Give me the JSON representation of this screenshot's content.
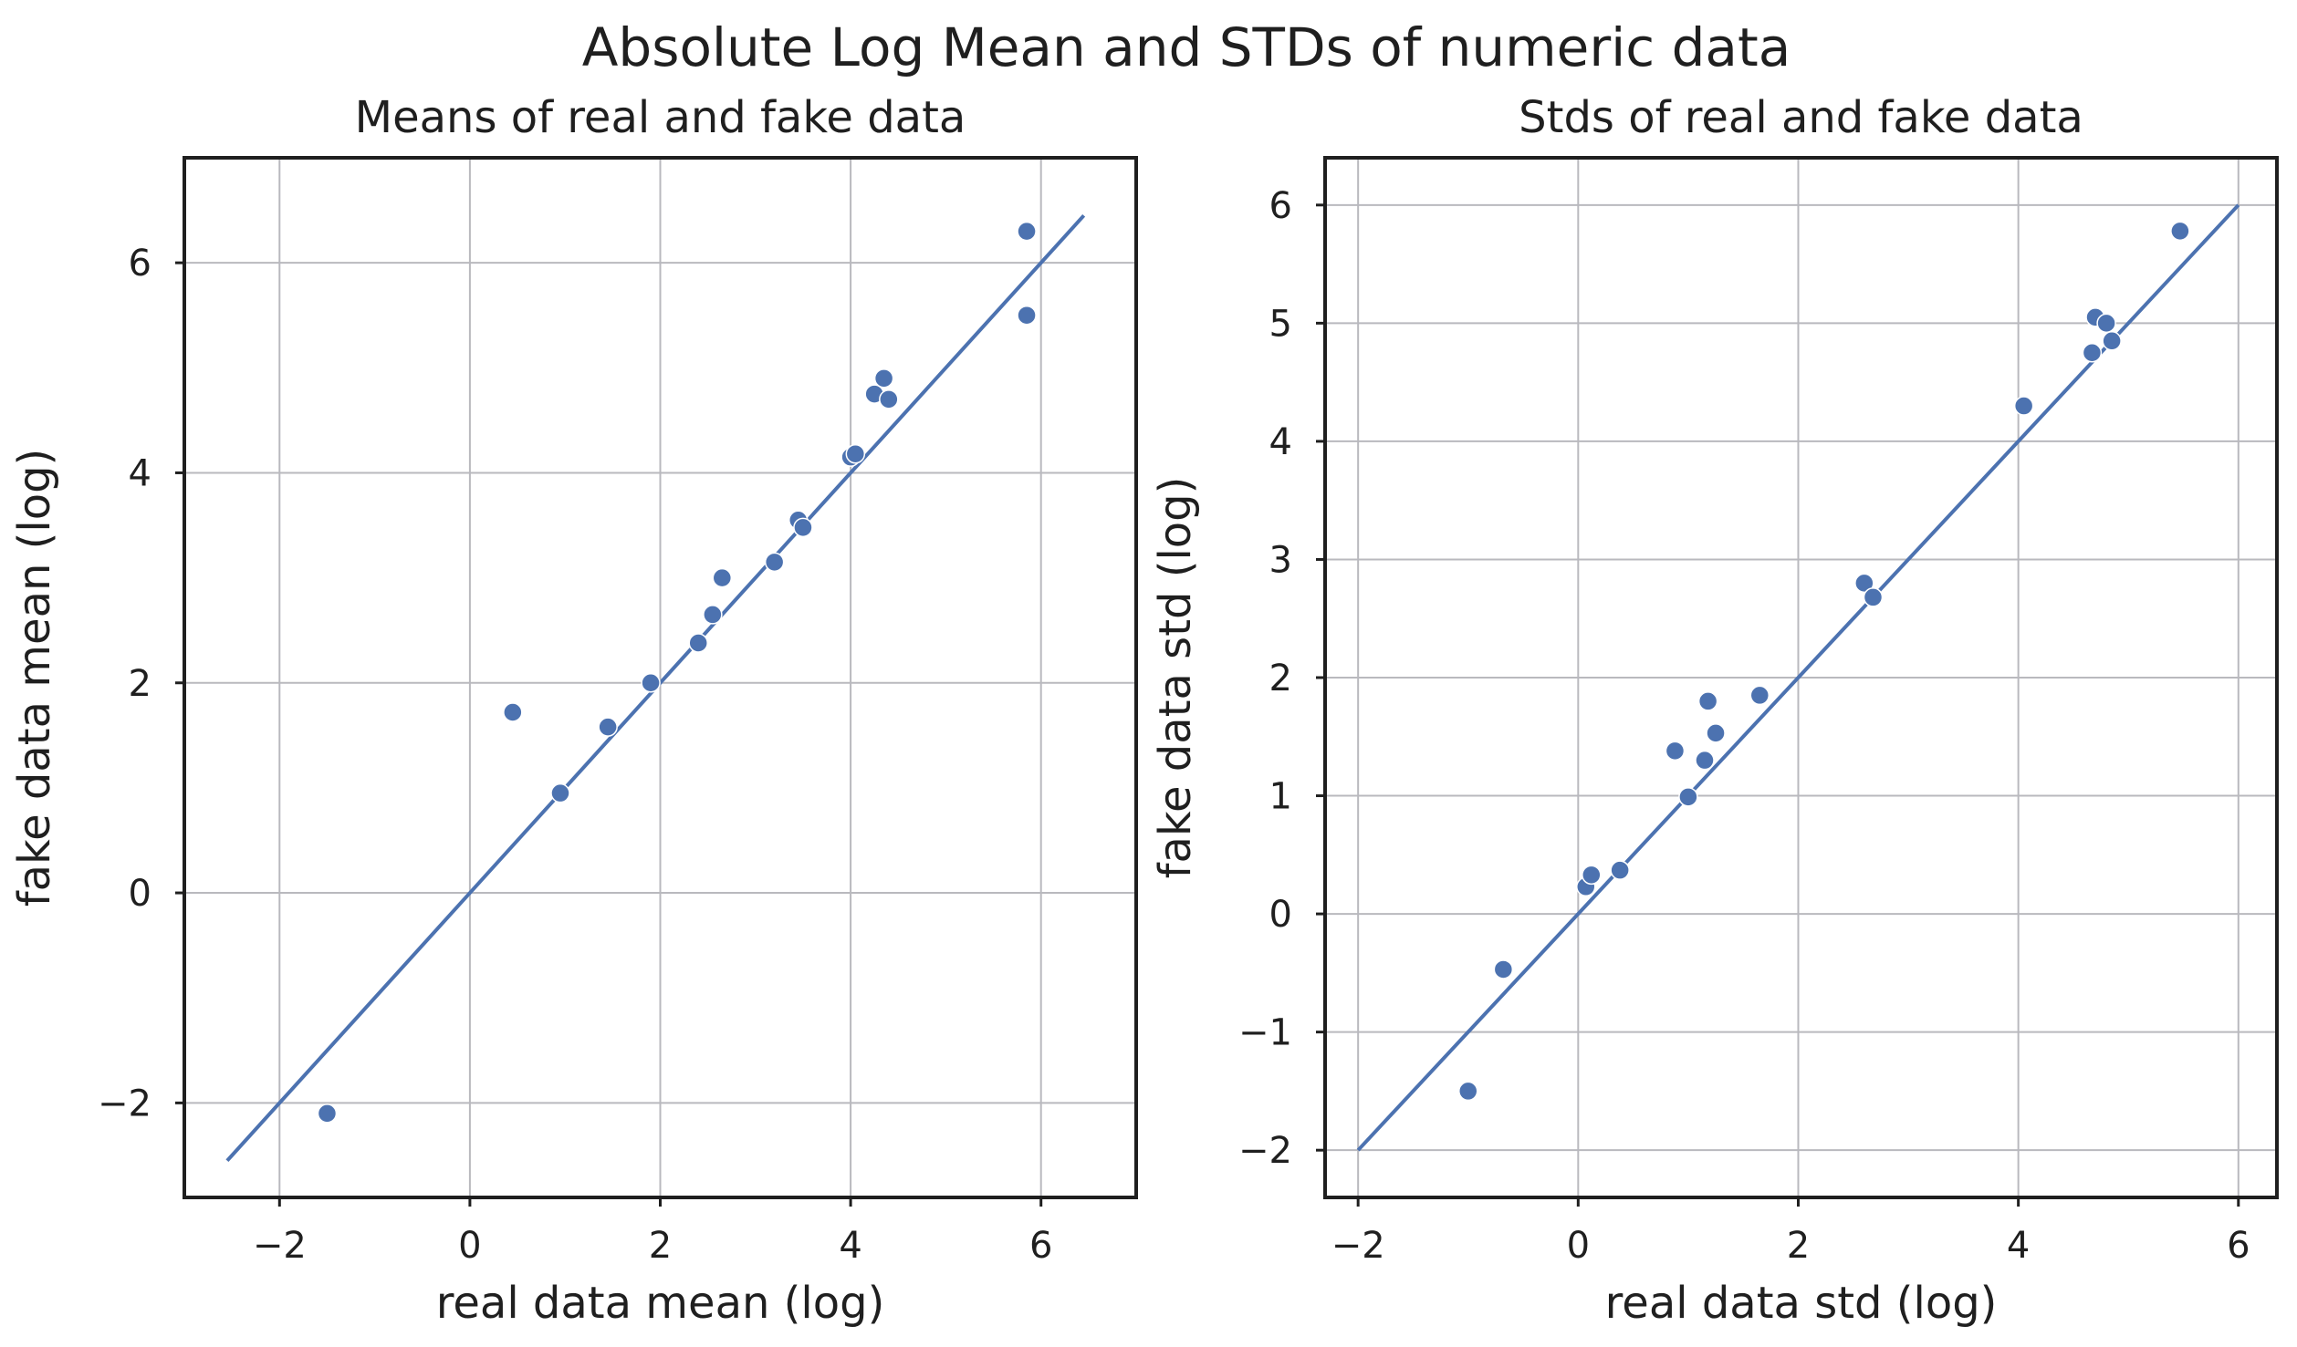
{
  "figure": {
    "suptitle": "Absolute Log Mean and STDs of numeric data",
    "colors": {
      "series": "#4C72B0",
      "grid": "#b9b9be",
      "frame": "#1f1f1f",
      "text": "#1f1f1f"
    }
  },
  "chart_data": [
    {
      "type": "scatter",
      "title": "Means of real and fake data",
      "xlabel": "real data mean (log)",
      "ylabel": "fake data mean (log)",
      "xlim": [
        -3,
        7
      ],
      "ylim": [
        -2.9,
        7
      ],
      "xticks": [
        -2,
        0,
        2,
        4,
        6
      ],
      "xtick_labels": [
        "−2",
        "0",
        "2",
        "4",
        "6"
      ],
      "yticks": [
        -2,
        0,
        2,
        4,
        6
      ],
      "ytick_labels": [
        "−2",
        "0",
        "2",
        "4",
        "6"
      ],
      "grid": true,
      "series": [
        {
          "name": "means",
          "x": [
            -1.5,
            0.45,
            0.95,
            1.45,
            1.9,
            2.4,
            2.55,
            2.65,
            3.2,
            3.45,
            3.5,
            4.0,
            4.05,
            4.25,
            4.35,
            4.4,
            5.85,
            5.85
          ],
          "y": [
            -2.1,
            1.72,
            0.95,
            1.58,
            2.0,
            2.38,
            2.65,
            3.0,
            3.15,
            3.55,
            3.48,
            4.15,
            4.18,
            4.75,
            4.9,
            4.7,
            6.3,
            5.5
          ]
        }
      ],
      "reference_line": {
        "x": [
          -2.55,
          6.45
        ],
        "y": [
          -2.55,
          6.45
        ]
      }
    },
    {
      "type": "scatter",
      "title": "Stds of real and fake data",
      "xlabel": "real data std (log)",
      "ylabel": "fake data std (log)",
      "xlim": [
        -2.3,
        6.35
      ],
      "ylim": [
        -2.4,
        6.4
      ],
      "xticks": [
        -2,
        0,
        2,
        4,
        6
      ],
      "xtick_labels": [
        "−2",
        "0",
        "2",
        "4",
        "6"
      ],
      "yticks": [
        -2,
        -1,
        0,
        1,
        2,
        3,
        4,
        5,
        6
      ],
      "ytick_labels": [
        "−2",
        "−1",
        "0",
        "1",
        "2",
        "3",
        "4",
        "5",
        "6"
      ],
      "grid": true,
      "series": [
        {
          "name": "stds",
          "x": [
            -1.0,
            -0.68,
            0.07,
            0.12,
            0.38,
            0.88,
            1.0,
            1.15,
            1.18,
            1.25,
            1.65,
            2.6,
            2.68,
            4.05,
            4.67,
            4.7,
            4.8,
            4.85,
            5.47
          ],
          "y": [
            -1.5,
            -0.47,
            0.23,
            0.33,
            0.37,
            1.38,
            0.99,
            1.3,
            1.8,
            1.53,
            1.85,
            2.8,
            2.68,
            4.3,
            4.75,
            5.05,
            5.0,
            4.85,
            5.78
          ]
        }
      ],
      "reference_line": {
        "x": [
          -2.0,
          6.0
        ],
        "y": [
          -2.0,
          6.0
        ]
      }
    }
  ]
}
